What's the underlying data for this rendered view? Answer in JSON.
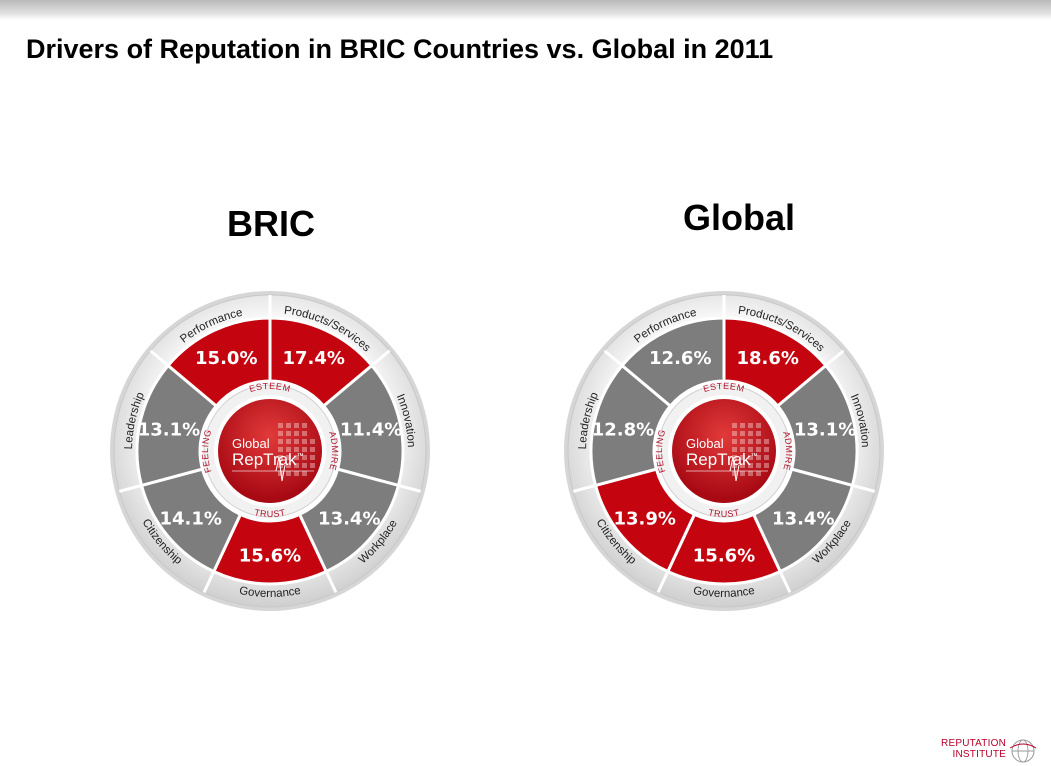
{
  "slide": {
    "title": "Drivers of Reputation in BRIC Countries vs. Global in 2011"
  },
  "colors": {
    "highlight_red": "#c4040f",
    "segment_gray": "#7d7d7d",
    "ring_light": "#e7e7e7",
    "core_red": "#a80a14",
    "brand_red": "#b8002a"
  },
  "hub": {
    "brand_line1": "Global",
    "brand_line2": "RepTrak",
    "trademark": "™",
    "ring_labels": {
      "top": "ESTEEM",
      "right": "ADMIRE",
      "bottom": "TRUST",
      "left": "FEELING"
    }
  },
  "logo": {
    "line1": "REPUTATION",
    "line2": "INSTITUTE",
    "icon": "globe-icon"
  },
  "chart_data": [
    {
      "type": "pie",
      "title": "BRIC",
      "categories": [
        "Products/Services",
        "Innovation",
        "Workplace",
        "Governance",
        "Citizenship",
        "Leadership",
        "Performance"
      ],
      "values": [
        17.4,
        11.4,
        13.4,
        15.6,
        14.1,
        13.1,
        15.0
      ],
      "labels": [
        "17.4%",
        "11.4%",
        "13.4%",
        "15.6%",
        "14.1%",
        "13.1%",
        "15.0%"
      ],
      "highlighted": [
        "Products/Services",
        "Governance",
        "Performance"
      ]
    },
    {
      "type": "pie",
      "title": "Global",
      "categories": [
        "Products/Services",
        "Innovation",
        "Workplace",
        "Governance",
        "Citizenship",
        "Leadership",
        "Performance"
      ],
      "values": [
        18.6,
        13.1,
        13.4,
        15.6,
        13.9,
        12.8,
        12.6
      ],
      "labels": [
        "18.6%",
        "13.1%",
        "13.4%",
        "15.6%",
        "13.9%",
        "12.8%",
        "12.6%"
      ],
      "highlighted": [
        "Products/Services",
        "Governance",
        "Citizenship"
      ]
    }
  ]
}
